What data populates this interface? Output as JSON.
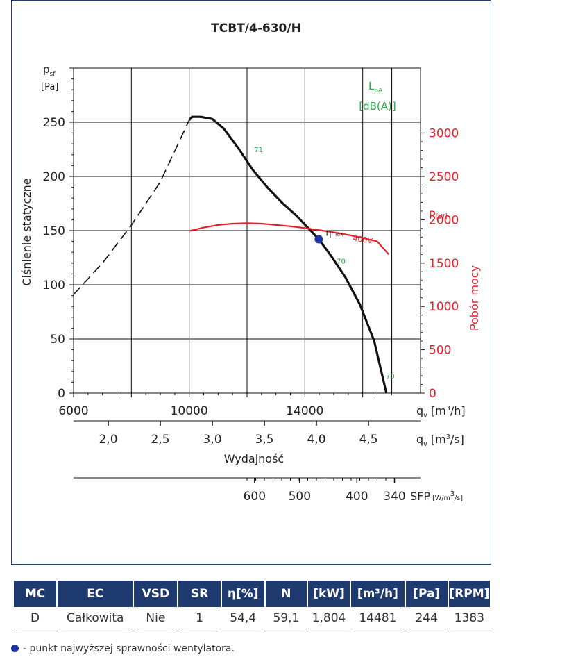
{
  "chart_data": {
    "type": "line",
    "title": "TCBT/4-630/H",
    "y_axis_left": {
      "label": "Ciśnienie statyczne",
      "symbol": "p",
      "symbol_sub": "sf",
      "unit": "[Pa]",
      "range": [
        0,
        300
      ],
      "ticks": [
        "0",
        "50",
        "100",
        "150",
        "200",
        "250"
      ]
    },
    "y_axis_right": {
      "label": "Pobór mocy",
      "symbol": "P",
      "unit": "[W]",
      "range": [
        0,
        3000
      ],
      "ticks": [
        "0",
        "500",
        "1000",
        "1500",
        "2000",
        "2500",
        "3000"
      ]
    },
    "x_axis_m3h": {
      "symbol": "q",
      "symbol_sub": "v",
      "unit_pre": "[m",
      "unit_sup": "3",
      "unit_post": "/h]",
      "range": [
        6000,
        18000
      ],
      "ticks": [
        "6000",
        "10000",
        "14000"
      ]
    },
    "x_axis_m3s": {
      "label": "Wydajność",
      "symbol": "q",
      "symbol_sub": "v",
      "unit_pre": "[m",
      "unit_sup": "3",
      "unit_post": "/s]",
      "ticks": [
        "2,0",
        "2,5",
        "3,0",
        "3,5",
        "4,0",
        "4,5"
      ]
    },
    "sfp_axis": {
      "symbol": "SFP",
      "unit_pre": "[W/m",
      "unit_sup": "3",
      "unit_post": "/s]",
      "ticks": [
        "600",
        "500",
        "400",
        "340"
      ]
    },
    "lpa_label": {
      "symbol": "L",
      "sub": "pA",
      "unit": "[dB(A)]"
    },
    "series": [
      {
        "name": "pressure",
        "axis": "left",
        "color": "#111111",
        "x": [
          10000,
          10100,
          10400,
          10800,
          11200,
          11700,
          12200,
          12700,
          13200,
          13700,
          14200,
          14481,
          14900,
          15400,
          15900,
          16400,
          16820
        ],
        "y": [
          252,
          255,
          255,
          253,
          244,
          226,
          206,
          190,
          176,
          164,
          150,
          142,
          127,
          107,
          82,
          48,
          0
        ]
      },
      {
        "name": "pressure-unstable",
        "axis": "left",
        "color": "#111111",
        "dashed": true,
        "x": [
          6000,
          7000,
          8000,
          9000,
          10000
        ],
        "y": [
          91,
          120,
          155,
          195,
          252
        ]
      },
      {
        "name": "400V",
        "axis": "right",
        "color": "#e8202a",
        "x": [
          10000,
          10500,
          11000,
          11500,
          12000,
          12500,
          13000,
          13500,
          14000,
          14500,
          15000,
          15500,
          16000,
          16500,
          16900
        ],
        "y": [
          1870,
          1910,
          1940,
          1955,
          1960,
          1955,
          1940,
          1925,
          1905,
          1880,
          1855,
          1825,
          1790,
          1750,
          1600
        ]
      }
    ],
    "noise_labels": [
      {
        "text": "71",
        "x": 12250,
        "y": 225
      },
      {
        "text": "70",
        "x": 15100,
        "y": 122
      },
      {
        "text": "70",
        "x": 16800,
        "y": 16
      }
    ],
    "eta_max": {
      "label": "η",
      "sub": "max",
      "x": 14481,
      "y": 142
    },
    "series_label_400v": "400V",
    "grid": true
  },
  "table": {
    "headers": [
      "MC",
      "EC",
      "VSD",
      "SR",
      "η[%]",
      "N",
      "[kW]",
      "[m³/h]",
      "[Pa]",
      "[RPM]"
    ],
    "row": [
      "D",
      "Całkowita",
      "Nie",
      "1",
      "54,4",
      "59,1",
      "1,804",
      "14481",
      "244",
      "1383"
    ]
  },
  "footnote": "- punkt najwyższej sprawności wentylatora.",
  "colors": {
    "frame": "#1f3a6e",
    "red": "#e8202a",
    "green": "#2aa84a",
    "marker": "#1f36a0"
  }
}
